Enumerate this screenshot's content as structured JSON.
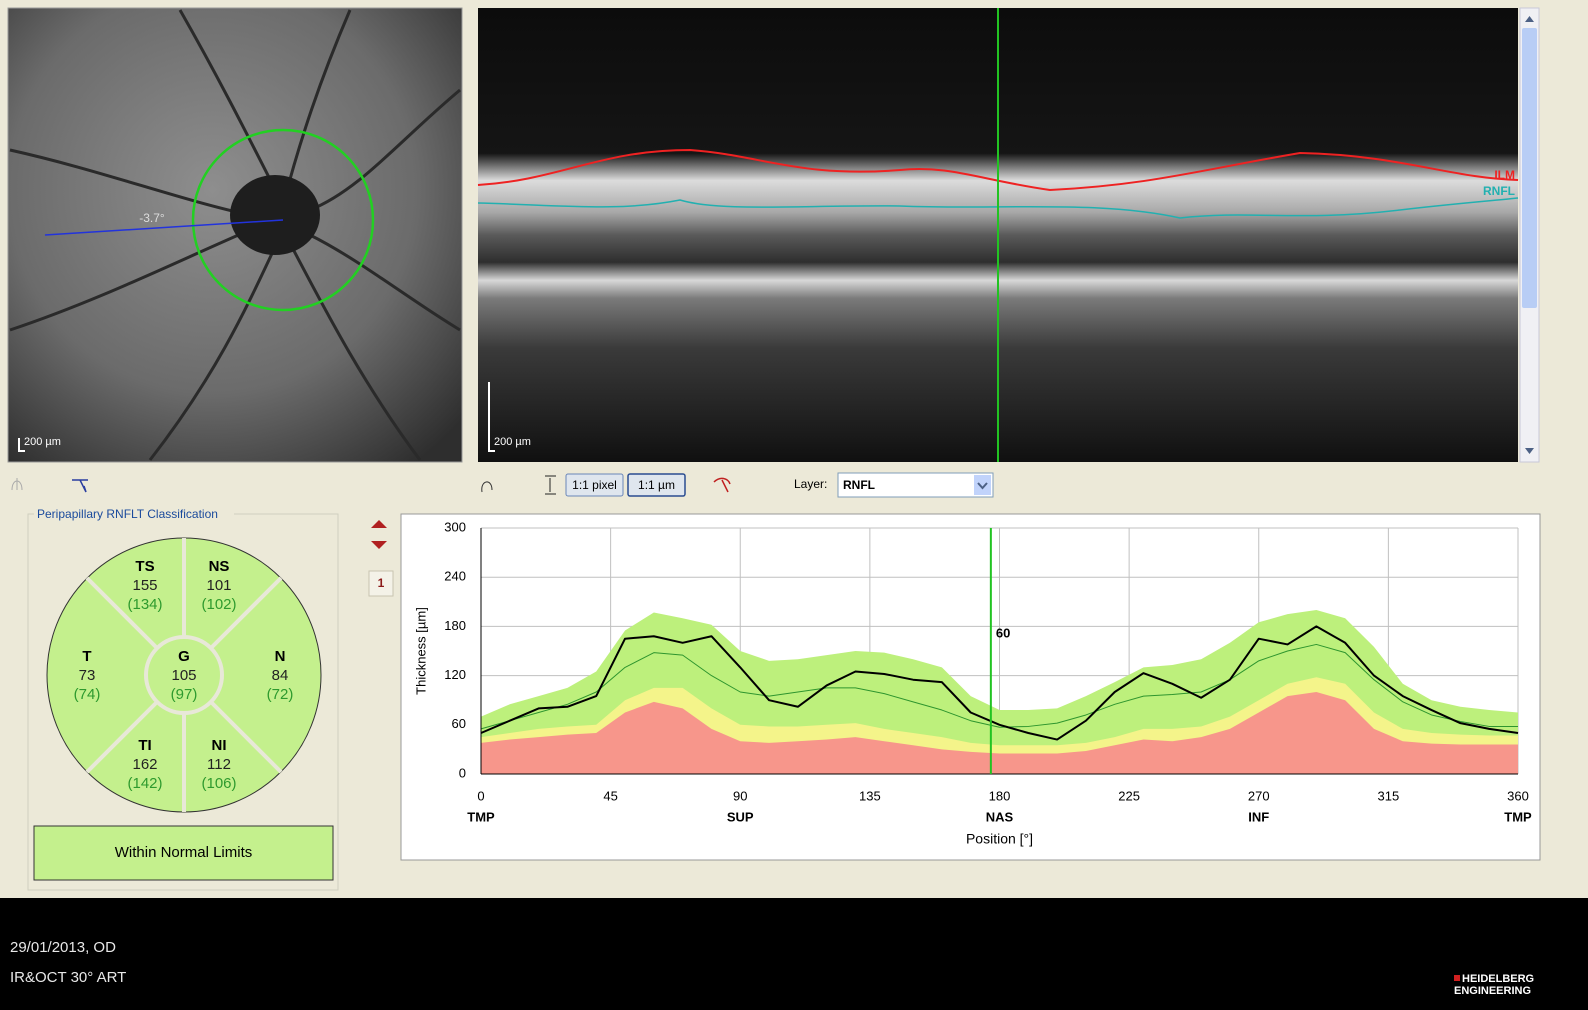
{
  "fundus": {
    "scale": "200 µm",
    "angle": "-3.7°"
  },
  "oct": {
    "scale": "200 µm",
    "layers": [
      "ILM",
      "RNFL"
    ]
  },
  "toolbar": {
    "pixel": "1:1 pixel",
    "micron": "1:1 µm",
    "layer_label": "Layer:",
    "layer_value": "RNFL"
  },
  "classification": {
    "title": "Peripapillary RNFLT Classification",
    "sectors": [
      {
        "name": "TS",
        "value": 155,
        "normal": "(134)"
      },
      {
        "name": "NS",
        "value": 101,
        "normal": "(102)"
      },
      {
        "name": "T",
        "value": 73,
        "normal": "(74)"
      },
      {
        "name": "G",
        "value": 105,
        "normal": "(97)"
      },
      {
        "name": "N",
        "value": 84,
        "normal": "(72)"
      },
      {
        "name": "TI",
        "value": 162,
        "normal": "(142)"
      },
      {
        "name": "NI",
        "value": 112,
        "normal": "(106)"
      }
    ],
    "result": "Within Normal Limits"
  },
  "page_number": 1,
  "footer": {
    "date": "29/01/2013, OD",
    "mode": "IR&OCT 30° ART",
    "brand": [
      "HEIDELBERG",
      "ENGINEERING"
    ]
  },
  "chart_data": {
    "type": "line",
    "x_label": "Position [°]",
    "y_label": "Thickness [µm]",
    "xlim": [
      0,
      360
    ],
    "xticks": [
      0,
      45,
      90,
      135,
      180,
      225,
      270,
      315,
      360
    ],
    "ylim": [
      0,
      300
    ],
    "yticks": [
      0,
      60,
      120,
      180,
      240,
      300
    ],
    "grid": true,
    "region_ticks": [
      {
        "value": 0,
        "label": "TMP"
      },
      {
        "value": 90,
        "label": "SUP"
      },
      {
        "value": 180,
        "label": "NAS"
      },
      {
        "value": 270,
        "label": "INF"
      },
      {
        "value": 360,
        "label": "TMP"
      }
    ],
    "cursor": {
      "x": 177,
      "value": 60,
      "color": "#22c322"
    },
    "x": [
      0,
      10,
      20,
      30,
      40,
      50,
      60,
      70,
      80,
      90,
      100,
      110,
      120,
      130,
      140,
      150,
      160,
      170,
      180,
      190,
      200,
      210,
      220,
      230,
      240,
      250,
      260,
      270,
      280,
      290,
      300,
      310,
      320,
      330,
      340,
      350,
      360
    ],
    "series": [
      {
        "style": "area",
        "color": "#bdf07c",
        "values": [
          70,
          85,
          95,
          105,
          125,
          175,
          197,
          190,
          182,
          150,
          138,
          140,
          145,
          150,
          148,
          140,
          130,
          95,
          78,
          78,
          80,
          95,
          112,
          130,
          133,
          140,
          160,
          185,
          195,
          200,
          190,
          155,
          110,
          90,
          82,
          78,
          75
        ]
      },
      {
        "style": "area",
        "color": "#f4f48a",
        "values": [
          45,
          50,
          55,
          58,
          60,
          90,
          105,
          105,
          80,
          60,
          58,
          58,
          60,
          62,
          55,
          50,
          45,
          38,
          35,
          35,
          35,
          38,
          45,
          55,
          55,
          58,
          70,
          90,
          110,
          118,
          110,
          75,
          55,
          50,
          48,
          47,
          47
        ]
      },
      {
        "style": "area",
        "color": "#f7968b",
        "values": [
          38,
          42,
          45,
          48,
          50,
          75,
          88,
          80,
          55,
          40,
          38,
          40,
          42,
          45,
          40,
          35,
          30,
          27,
          25,
          25,
          25,
          28,
          35,
          42,
          40,
          45,
          55,
          75,
          95,
          100,
          90,
          55,
          40,
          37,
          36,
          36,
          36
        ]
      },
      {
        "style": "line",
        "color": "#2e952e",
        "width": 1,
        "values": [
          55,
          65,
          75,
          85,
          100,
          130,
          148,
          145,
          120,
          100,
          95,
          100,
          105,
          105,
          98,
          88,
          78,
          65,
          57,
          58,
          62,
          72,
          85,
          95,
          97,
          100,
          115,
          138,
          150,
          158,
          148,
          115,
          88,
          72,
          64,
          58,
          58
        ]
      },
      {
        "style": "line",
        "color": "#000000",
        "width": 2,
        "values": [
          50,
          65,
          80,
          82,
          95,
          165,
          168,
          160,
          168,
          130,
          90,
          82,
          108,
          125,
          122,
          115,
          112,
          75,
          60,
          50,
          42,
          65,
          100,
          123,
          110,
          93,
          115,
          165,
          158,
          180,
          160,
          120,
          95,
          78,
          62,
          55,
          50
        ]
      }
    ]
  }
}
